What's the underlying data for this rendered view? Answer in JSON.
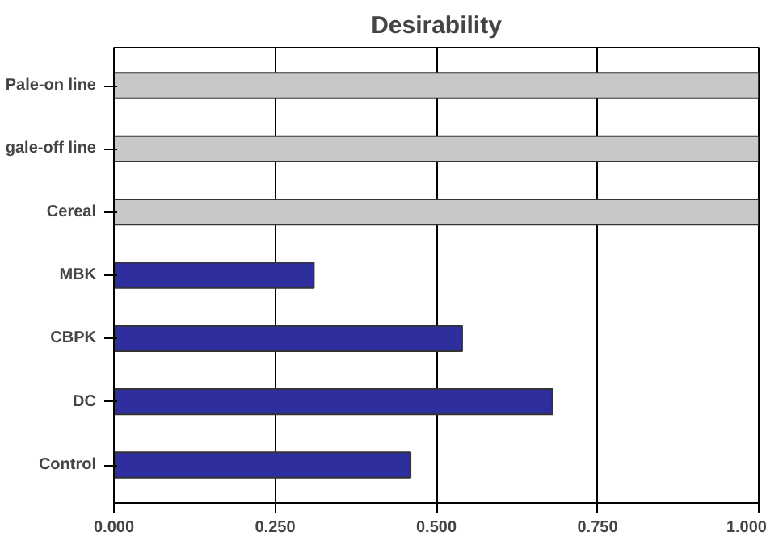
{
  "chart_data": {
    "type": "bar",
    "orientation": "horizontal",
    "title": "Desirability",
    "categories": [
      "Pale-on line",
      "gale-off line",
      "Cereal",
      "MBK",
      "CBPK",
      "DC",
      "Control"
    ],
    "values": [
      1.0,
      1.0,
      1.0,
      0.31,
      0.54,
      0.68,
      0.46
    ],
    "colors": [
      "#c8c8c8",
      "#c8c8c8",
      "#c8c8c8",
      "#2e2e9e",
      "#2e2e9e",
      "#2e2e9e",
      "#2e2e9e"
    ],
    "xlim": [
      0,
      1
    ],
    "xticks": [
      {
        "value": 0,
        "label": "0.000"
      },
      {
        "value": 0.25,
        "label": "0.250"
      },
      {
        "value": 0.5,
        "label": "0.500"
      },
      {
        "value": 0.75,
        "label": "0.750"
      },
      {
        "value": 1,
        "label": "1.000"
      }
    ],
    "grid": "x"
  }
}
